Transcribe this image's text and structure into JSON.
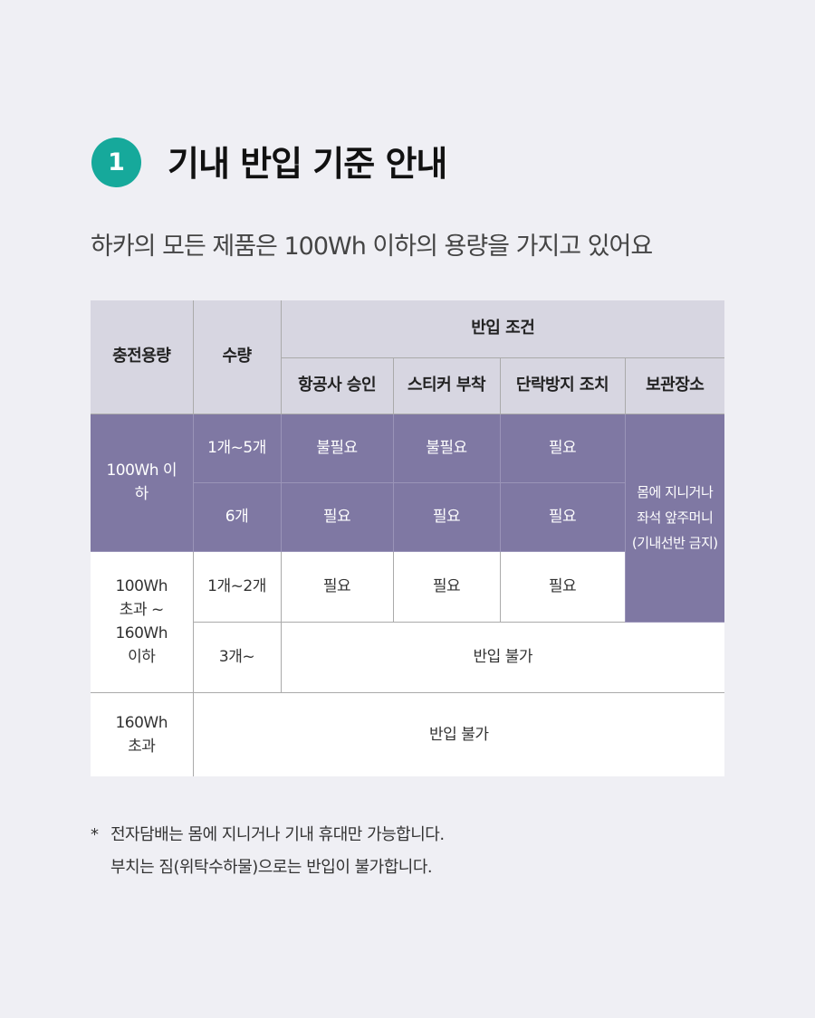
{
  "header": {
    "step": "1",
    "title": "기내 반입 기준 안내",
    "subtitle": "하카의 모든 제품은 100Wh 이하의 용량을 가지고 있어요"
  },
  "table": {
    "head": {
      "capacity": "충전용량",
      "quantity": "수량",
      "conditions": "반입 조건",
      "approval": "항공사 승인",
      "sticker": "스티커 부착",
      "short": "단락방지 조치",
      "storage": "보관장소"
    },
    "rows": [
      {
        "cap": "100Wh 이하",
        "qty": "1개~5개",
        "approval": "불필요",
        "sticker": "불필요",
        "short": "필요"
      },
      {
        "qty": "6개",
        "approval": "필요",
        "sticker": "필요",
        "short": "필요"
      },
      {
        "cap": "100Wh 초과 ~ 160Wh 이하",
        "qty": "1개~2개",
        "approval": "필요",
        "sticker": "필요",
        "short": "필요"
      },
      {
        "qty": "3개~",
        "result": "반입 불가"
      },
      {
        "cap": "160Wh 초과",
        "result": "반입 불가"
      }
    ],
    "storage_text": "몸에 지니거나 좌석 앞주머니 (기내선반 금지)"
  },
  "note": {
    "star": "*",
    "line1": "전자담배는 몸에 지니거나 기내 휴대만 가능합니다.",
    "line2": "부치는 짐(위탁수하물)으로는 반입이 불가합니다."
  },
  "colors": {
    "accent": "#16a99b",
    "purple": "#7f78a3",
    "header": "#d7d6e1"
  }
}
